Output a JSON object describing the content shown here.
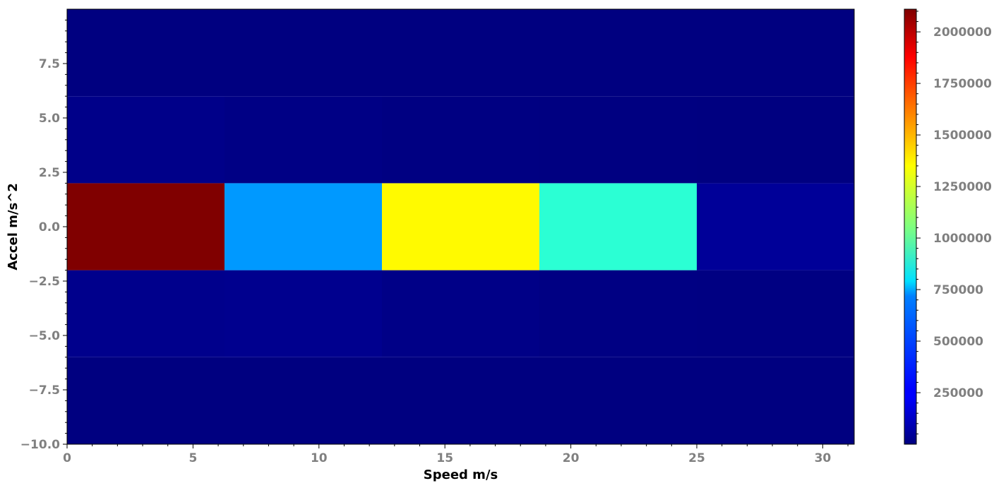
{
  "chart_data": {
    "type": "heatmap",
    "title": "",
    "xlabel": "Speed m/s",
    "ylabel": "Accel m/s^2",
    "x_edges": [
      0,
      6.25,
      12.5,
      18.75,
      25,
      31.25
    ],
    "y_edges": [
      -10,
      -6,
      -2,
      2,
      6,
      10
    ],
    "xlim": [
      0,
      31.25
    ],
    "ylim": [
      -10,
      10
    ],
    "x_ticks": [
      0,
      5,
      10,
      15,
      20,
      25,
      30
    ],
    "y_ticks": [
      -10.0,
      -7.5,
      -5.0,
      -2.5,
      0.0,
      2.5,
      5.0,
      7.5
    ],
    "values": [
      [
        1000,
        500,
        300,
        200,
        100
      ],
      [
        25000,
        30000,
        15000,
        8000,
        5000
      ],
      [
        2110000,
        580000,
        1330000,
        880000,
        50000
      ],
      [
        20000,
        12000,
        6000,
        3000,
        1000
      ],
      [
        500,
        200,
        100,
        50,
        20
      ]
    ],
    "colorbar": {
      "colormap": "jet",
      "vmin": 20,
      "vmax": 2110000,
      "ticks": [
        250000,
        500000,
        750000,
        1000000,
        1250000,
        1500000,
        1750000,
        2000000
      ]
    },
    "grid": false
  }
}
